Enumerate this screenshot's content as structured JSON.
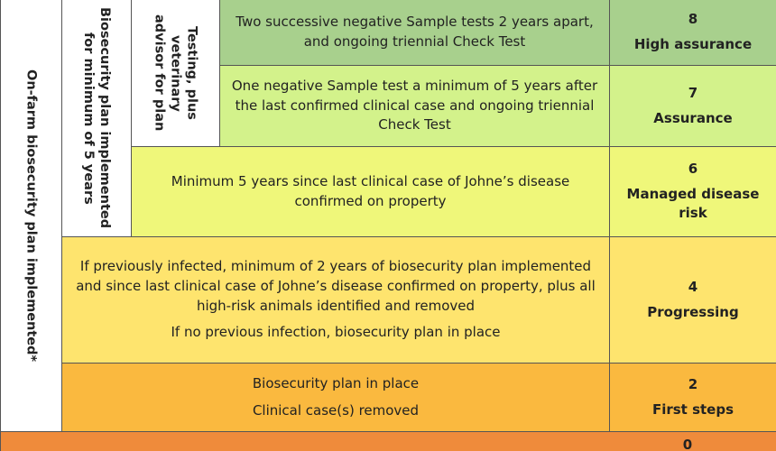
{
  "side_labels": {
    "outer": "On-farm biosecurity plan implemented*",
    "middle": "Biosecurity plan implemented for minimum of 5 years",
    "inner": "Testing, plus veterinary advisor for plan"
  },
  "levels": [
    {
      "score": "8",
      "name": "High assurance",
      "criteria": [
        "Two successive negative Sample tests 2 years apart, and ongoing triennial Check Test"
      ]
    },
    {
      "score": "7",
      "name": "Assurance",
      "criteria": [
        "One negative Sample test a minimum of 5 years after the last confirmed clinical case and ongoing triennial Check Test"
      ]
    },
    {
      "score": "6",
      "name": "Managed disease risk",
      "criteria": [
        "Minimum 5 years since last clinical case of Johne’s disease confirmed on property"
      ]
    },
    {
      "score": "4",
      "name": "Progressing",
      "criteria": [
        "If previously infected, minimum of 2 years of biosecurity plan implemented and since last clinical case of Johne’s disease confirmed on property, plus all high-risk animals identified and removed",
        "If no previous infection, biosecurity plan in place"
      ]
    },
    {
      "score": "2",
      "name": "First steps",
      "criteria": [
        "Biosecurity plan in place",
        "Clinical case(s) removed"
      ]
    },
    {
      "score": "0"
    }
  ]
}
